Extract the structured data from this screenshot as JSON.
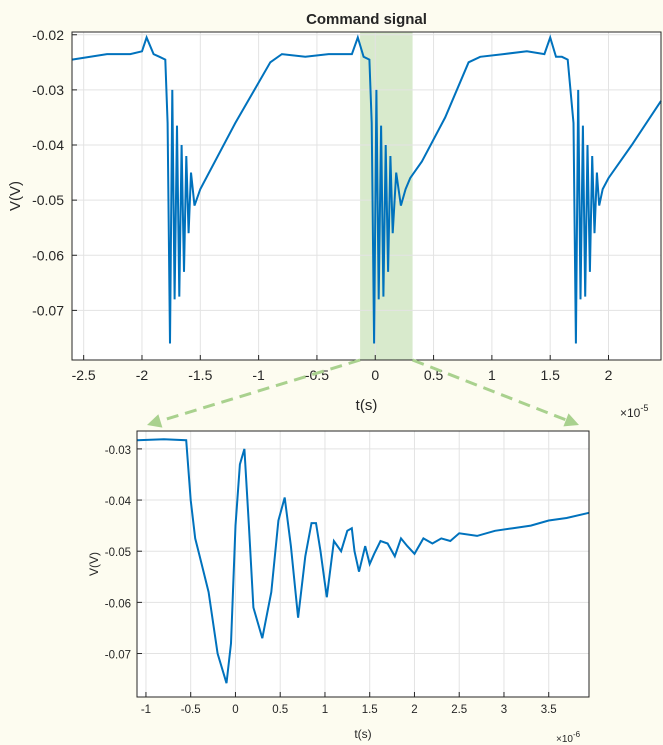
{
  "figure": {
    "background": "#fdfcf0",
    "line_color": "#0072bd",
    "highlight_color": "#a9d18e",
    "arrow_color": "#a9d18e"
  },
  "chart_data": [
    {
      "type": "line",
      "title": "Command signal",
      "xlabel": "t(s)",
      "ylabel": "V(V)",
      "x_exponent": "×10",
      "x_exponent_power": "-5",
      "xlim": [
        -2.6,
        2.45
      ],
      "ylim": [
        -0.079,
        -0.0195
      ],
      "xticks": [
        -2.5,
        -2,
        -1.5,
        -1,
        -0.5,
        0,
        0.5,
        1,
        1.5,
        2
      ],
      "xtick_labels": [
        "-2.5",
        "-2",
        "-1.5",
        "-1",
        "-0.5",
        "0",
        "0.5",
        "1",
        "1.5",
        "2"
      ],
      "yticks": [
        -0.07,
        -0.06,
        -0.05,
        -0.04,
        -0.03,
        -0.02
      ],
      "ytick_labels": [
        "-0.07",
        "-0.06",
        "-0.05",
        "-0.04",
        "-0.03",
        "-0.02"
      ],
      "grid": true,
      "highlight_x": [
        -0.13,
        0.32
      ],
      "series": [
        {
          "x": [
            -2.6,
            -2.3,
            -2.1,
            -2.0,
            -1.96,
            -1.93,
            -1.9,
            -1.85,
            -1.8,
            -1.78,
            -1.76,
            -1.74,
            -1.72,
            -1.7,
            -1.68,
            -1.66,
            -1.64,
            -1.62,
            -1.6,
            -1.58,
            -1.55,
            -1.5,
            -1.2,
            -0.9,
            -0.8,
            -0.6,
            -0.4,
            -0.2,
            -0.15,
            -0.1,
            -0.05,
            -0.03,
            -0.01,
            0.01,
            0.03,
            0.05,
            0.07,
            0.09,
            0.11,
            0.13,
            0.15,
            0.18,
            0.22,
            0.26,
            0.3,
            0.4,
            0.6,
            0.8,
            0.9,
            1.1,
            1.3,
            1.45,
            1.5,
            1.55,
            1.6,
            1.65,
            1.7,
            1.72,
            1.74,
            1.76,
            1.78,
            1.8,
            1.82,
            1.84,
            1.86,
            1.88,
            1.9,
            1.92,
            1.95,
            2.0,
            2.2,
            2.45
          ],
          "y": [
            -0.0245,
            -0.0235,
            -0.0235,
            -0.023,
            -0.0205,
            -0.022,
            -0.0235,
            -0.024,
            -0.0245,
            -0.036,
            -0.076,
            -0.03,
            -0.068,
            -0.0365,
            -0.0675,
            -0.04,
            -0.063,
            -0.042,
            -0.056,
            -0.045,
            -0.051,
            -0.048,
            -0.036,
            -0.025,
            -0.0235,
            -0.024,
            -0.0235,
            -0.0235,
            -0.0205,
            -0.024,
            -0.0245,
            -0.036,
            -0.076,
            -0.03,
            -0.068,
            -0.0365,
            -0.0675,
            -0.04,
            -0.063,
            -0.042,
            -0.056,
            -0.045,
            -0.051,
            -0.048,
            -0.046,
            -0.043,
            -0.035,
            -0.025,
            -0.024,
            -0.0235,
            -0.023,
            -0.0235,
            -0.0205,
            -0.024,
            -0.024,
            -0.0245,
            -0.036,
            -0.076,
            -0.03,
            -0.068,
            -0.0365,
            -0.0675,
            -0.04,
            -0.063,
            -0.042,
            -0.056,
            -0.045,
            -0.051,
            -0.048,
            -0.046,
            -0.04,
            -0.032
          ]
        }
      ]
    },
    {
      "type": "line",
      "title": "",
      "xlabel": "t(s)",
      "ylabel": "V(V)",
      "x_exponent": "×10",
      "x_exponent_power": "-6",
      "xlim": [
        -1.1,
        3.95
      ],
      "ylim": [
        -0.0785,
        -0.0265
      ],
      "xticks": [
        -1,
        -0.5,
        0,
        0.5,
        1,
        1.5,
        2,
        2.5,
        3,
        3.5
      ],
      "xtick_labels": [
        "-1",
        "-0.5",
        "0",
        "0.5",
        "1",
        "1.5",
        "2",
        "2.5",
        "3",
        "3.5"
      ],
      "yticks": [
        -0.07,
        -0.06,
        -0.05,
        -0.04,
        -0.03
      ],
      "ytick_labels": [
        "-0.07",
        "-0.06",
        "-0.05",
        "-0.04",
        "-0.03"
      ],
      "grid": true,
      "series": [
        {
          "x": [
            -1.1,
            -0.8,
            -0.55,
            -0.5,
            -0.45,
            -0.4,
            -0.3,
            -0.2,
            -0.1,
            -0.05,
            0.0,
            0.05,
            0.1,
            0.15,
            0.2,
            0.3,
            0.4,
            0.48,
            0.55,
            0.62,
            0.7,
            0.78,
            0.85,
            0.9,
            0.95,
            1.02,
            1.1,
            1.18,
            1.25,
            1.3,
            1.33,
            1.38,
            1.45,
            1.5,
            1.55,
            1.62,
            1.7,
            1.78,
            1.85,
            1.92,
            2.0,
            2.1,
            2.2,
            2.3,
            2.4,
            2.5,
            2.7,
            2.9,
            3.1,
            3.3,
            3.5,
            3.7,
            3.95
          ],
          "y": [
            -0.0283,
            -0.0281,
            -0.0283,
            -0.04,
            -0.0475,
            -0.051,
            -0.058,
            -0.07,
            -0.0758,
            -0.068,
            -0.045,
            -0.033,
            -0.03,
            -0.045,
            -0.061,
            -0.067,
            -0.058,
            -0.044,
            -0.0395,
            -0.049,
            -0.063,
            -0.051,
            -0.0445,
            -0.0445,
            -0.05,
            -0.059,
            -0.048,
            -0.05,
            -0.046,
            -0.0455,
            -0.05,
            -0.054,
            -0.049,
            -0.0525,
            -0.0505,
            -0.048,
            -0.0485,
            -0.051,
            -0.0475,
            -0.049,
            -0.0505,
            -0.0475,
            -0.0485,
            -0.0475,
            -0.048,
            -0.0465,
            -0.047,
            -0.046,
            -0.0455,
            -0.045,
            -0.044,
            -0.0435,
            -0.0425
          ]
        }
      ]
    }
  ]
}
